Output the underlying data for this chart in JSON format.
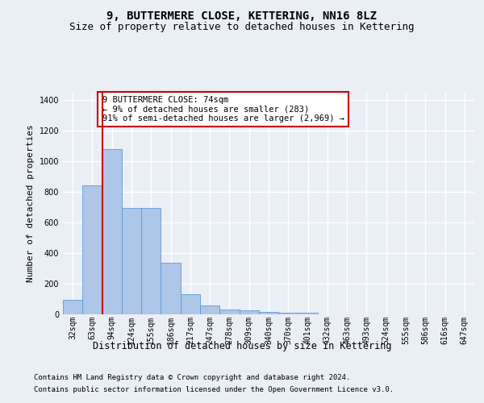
{
  "title": "9, BUTTERMERE CLOSE, KETTERING, NN16 8LZ",
  "subtitle": "Size of property relative to detached houses in Kettering",
  "xlabel": "Distribution of detached houses by size in Kettering",
  "ylabel": "Number of detached properties",
  "categories": [
    "32sqm",
    "63sqm",
    "94sqm",
    "124sqm",
    "155sqm",
    "186sqm",
    "217sqm",
    "247sqm",
    "278sqm",
    "309sqm",
    "340sqm",
    "370sqm",
    "401sqm",
    "432sqm",
    "463sqm",
    "493sqm",
    "524sqm",
    "555sqm",
    "586sqm",
    "616sqm",
    "647sqm"
  ],
  "bar_values": [
    95,
    845,
    1080,
    695,
    695,
    335,
    130,
    60,
    30,
    25,
    15,
    12,
    12,
    0,
    0,
    0,
    0,
    0,
    0,
    0,
    0
  ],
  "bar_color": "#aec6e8",
  "bar_edge_color": "#5b9bd5",
  "vline_x": 1.5,
  "vline_color": "#cc0000",
  "annotation_text": "9 BUTTERMERE CLOSE: 74sqm\n← 9% of detached houses are smaller (283)\n91% of semi-detached houses are larger (2,969) →",
  "annotation_box_facecolor": "#ffffff",
  "annotation_box_edgecolor": "#cc0000",
  "ylim": [
    0,
    1450
  ],
  "yticks": [
    0,
    200,
    400,
    600,
    800,
    1000,
    1200,
    1400
  ],
  "footer1": "Contains HM Land Registry data © Crown copyright and database right 2024.",
  "footer2": "Contains public sector information licensed under the Open Government Licence v3.0.",
  "bg_color": "#eaeef5",
  "plot_bg_color": "#eaeef5",
  "grid_color": "#ffffff",
  "title_fontsize": 10,
  "subtitle_fontsize": 9,
  "ylabel_fontsize": 8,
  "xlabel_fontsize": 8.5,
  "tick_fontsize": 7,
  "annot_fontsize": 7.5,
  "footer_fontsize": 6.5
}
